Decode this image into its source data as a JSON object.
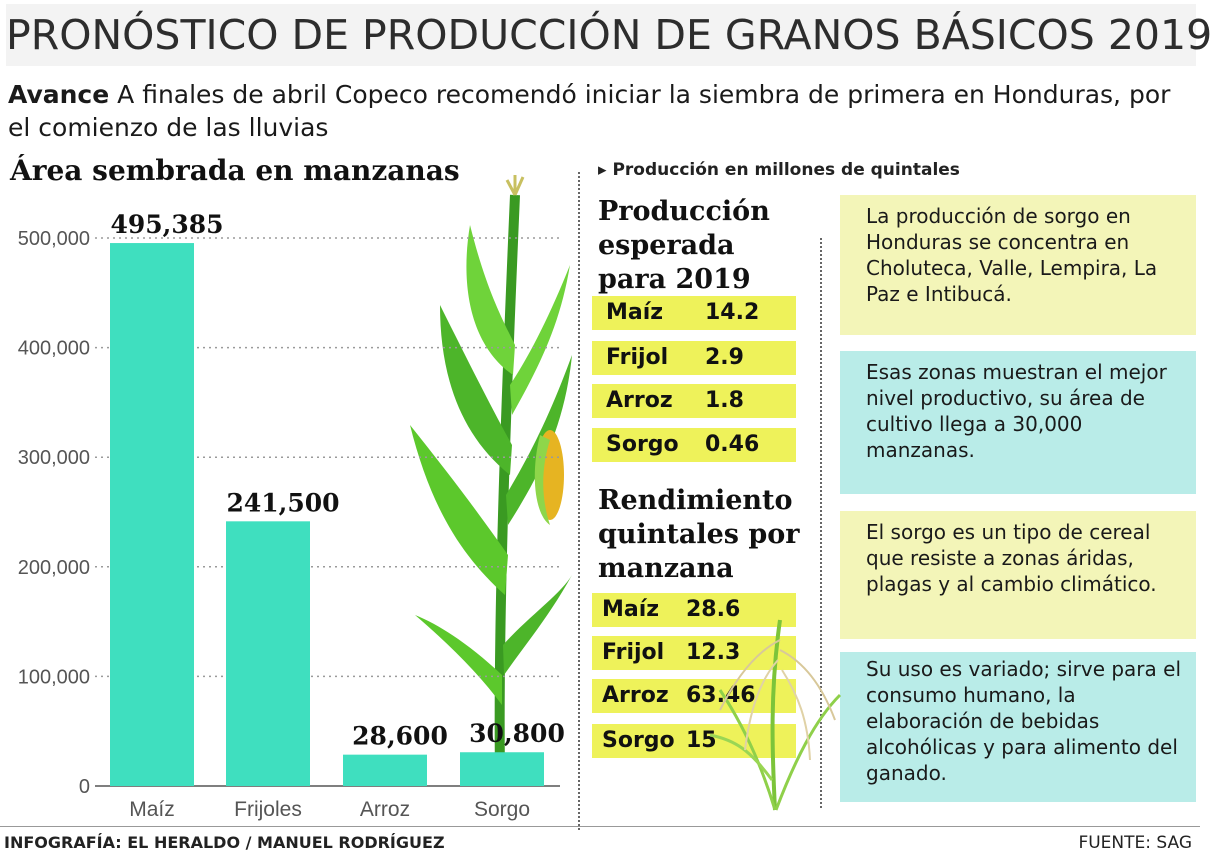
{
  "title": "PRONÓSTICO DE PRODUCCIÓN DE GRANOS BÁSICOS 2019",
  "lead": {
    "bold": "Avance",
    "text": " A finales de abril Copeco recomendó iniciar la siembra de primera en Honduras, por el comienzo de las lluvias"
  },
  "chart_data": {
    "type": "bar",
    "title": "Área sembrada en manzanas",
    "categories": [
      "Maíz",
      "Frijoles",
      "Arroz",
      "Sorgo"
    ],
    "values": [
      495385,
      241500,
      28600,
      30800
    ],
    "value_labels": [
      "495,385",
      "241,500",
      "28,600",
      "30,800"
    ],
    "ylim": [
      0,
      500000
    ],
    "yticks": [
      "0",
      "100,000",
      "200,000",
      "300,000",
      "400,000",
      "500,000"
    ],
    "grid": true,
    "bar_color": "#3fdfbf"
  },
  "production": {
    "subtitle": "Producción en millones de quintales",
    "expected_title": "Producción esperada para 2019",
    "expected": [
      {
        "name": "Maíz",
        "value": "14.2"
      },
      {
        "name": "Frijol",
        "value": "2.9"
      },
      {
        "name": "Arroz",
        "value": "1.8"
      },
      {
        "name": "Sorgo",
        "value": "0.46"
      }
    ],
    "yield_title": "Rendimiento quintales por manzana",
    "yield": [
      {
        "name": "Maíz",
        "value": "28.6"
      },
      {
        "name": "Frijol",
        "value": "12.3"
      },
      {
        "name": "Arroz",
        "value": "63.46"
      },
      {
        "name": "Sorgo",
        "value": "15"
      }
    ]
  },
  "notes": [
    "La producción de sorgo en Honduras se concentra en Choluteca, Valle, Lempira, La Paz e Intibucá.",
    "Esas zonas muestran el mejor nivel productivo, su área de cultivo llega a 30,000 manzanas.",
    "El sorgo es un tipo de cereal que resiste a zonas áridas, plagas y al cambio climático.",
    "Su uso es variado; sirve para el consumo humano, la elaboración de bebidas alcohólicas y para alimento del ganado."
  ],
  "footer": {
    "credit": "INFOGRAFÍA: EL HERALDO / MANUEL RODRÍGUEZ",
    "source": "FUENTE: SAG"
  },
  "colors": {
    "accent_yellow": "#eef25a",
    "box_yellow": "#f3f5b8",
    "box_cyan": "#b9ece8",
    "bar": "#3fdfbf"
  },
  "icons": {
    "plant": "corn-plant-illustration",
    "grass": "sorghum-plant-illustration"
  }
}
